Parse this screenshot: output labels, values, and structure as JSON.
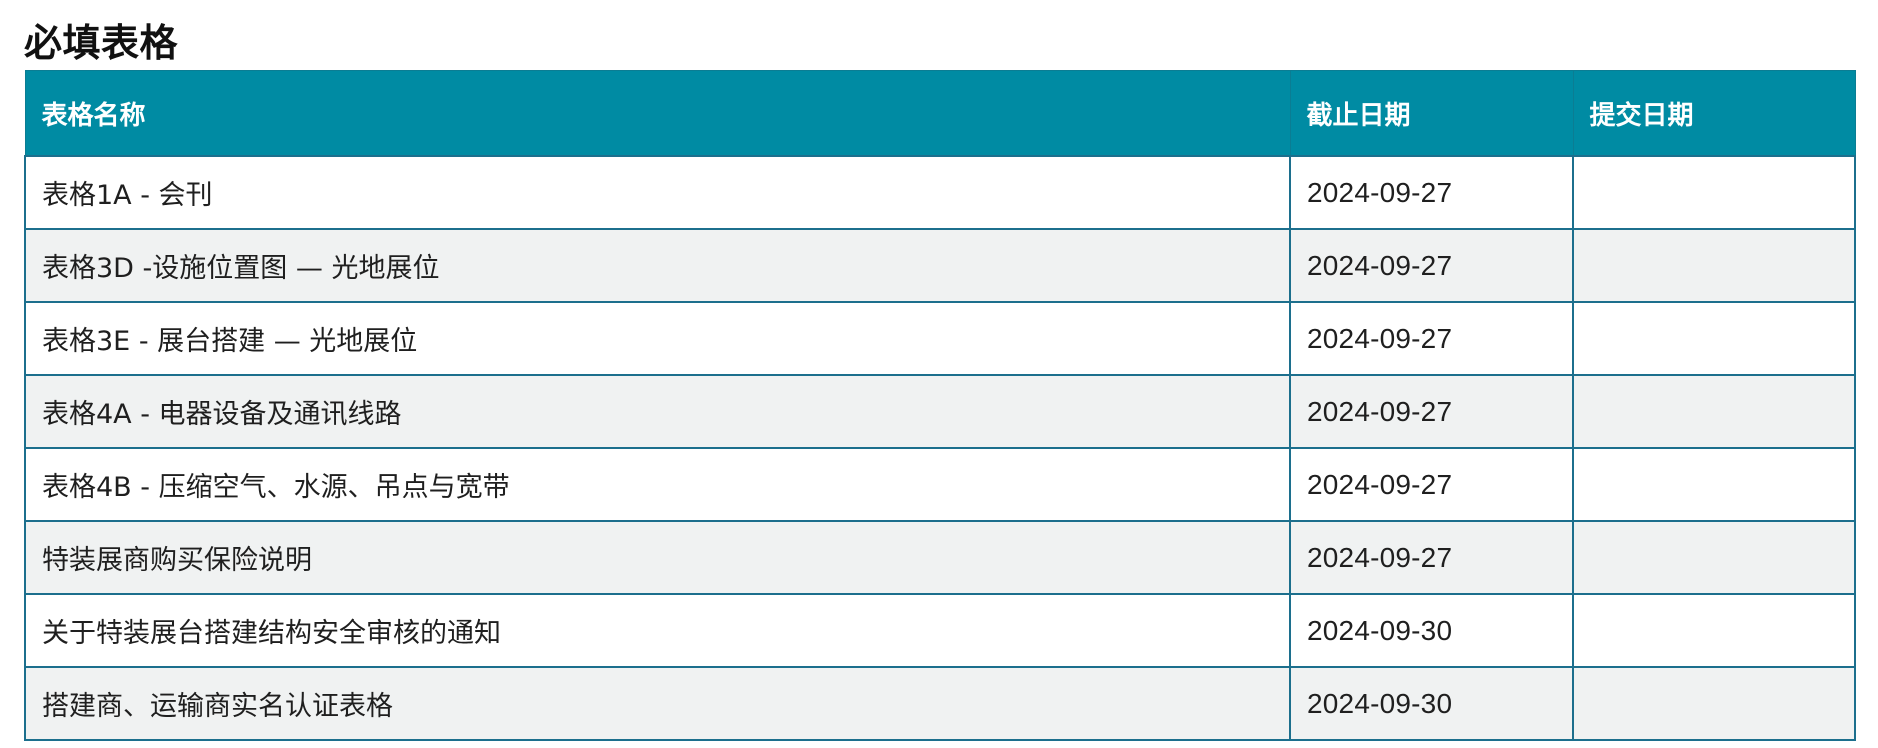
{
  "page": {
    "title": "必填表格"
  },
  "colors": {
    "header_bg": "#008ba3",
    "header_text": "#ffffff",
    "border": "#1c6f8d",
    "row_alt_bg": "#f0f2f2"
  },
  "table": {
    "headers": {
      "name": "表格名称",
      "deadline": "截止日期",
      "submitted": "提交日期"
    },
    "rows": [
      {
        "name": "表格1A - 会刊",
        "deadline": "2024-09-27",
        "submitted": ""
      },
      {
        "name": "表格3D -设施位置图 — 光地展位",
        "deadline": "2024-09-27",
        "submitted": ""
      },
      {
        "name": "表格3E - 展台搭建 — 光地展位",
        "deadline": "2024-09-27",
        "submitted": ""
      },
      {
        "name": "表格4A - 电器设备及通讯线路",
        "deadline": "2024-09-27",
        "submitted": ""
      },
      {
        "name": "表格4B - 压缩空气、水源、吊点与宽带",
        "deadline": "2024-09-27",
        "submitted": ""
      },
      {
        "name": "特装展商购买保险说明",
        "deadline": "2024-09-27",
        "submitted": ""
      },
      {
        "name": "关于特装展台搭建结构安全审核的通知",
        "deadline": "2024-09-30",
        "submitted": ""
      },
      {
        "name": "搭建商、运输商实名认证表格",
        "deadline": "2024-09-30",
        "submitted": ""
      }
    ]
  }
}
